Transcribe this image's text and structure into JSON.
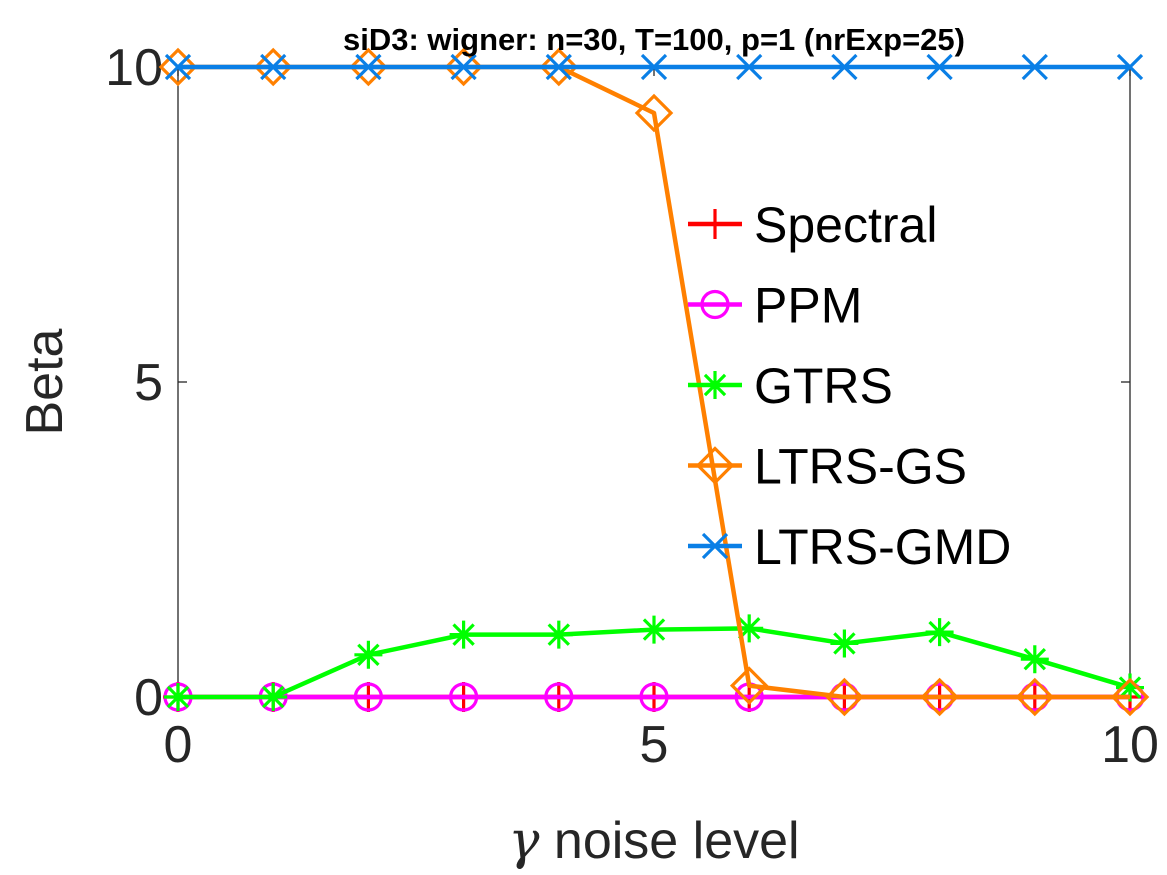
{
  "chart_data": {
    "type": "line",
    "title": "siD3: wigner: n=30, T=100, p=1 (nrExp=25)",
    "xlabel": "γ noise level",
    "xlabel_symbol": "γ",
    "xlabel_text": "noise level",
    "ylabel": "Beta",
    "xlim": [
      0,
      10
    ],
    "ylim": [
      0,
      10
    ],
    "xticks": [
      0,
      5,
      10
    ],
    "yticks": [
      0,
      5,
      10
    ],
    "xtick_labels": [
      "0",
      "5",
      "10"
    ],
    "ytick_labels": [
      "0",
      "5",
      "10"
    ],
    "grid": false,
    "legend_position": "right",
    "x": [
      0,
      1,
      2,
      3,
      4,
      5,
      6,
      7,
      8,
      9,
      10
    ],
    "series": [
      {
        "name": "Spectral",
        "color": "#ff0000",
        "marker": "plus",
        "values": [
          0,
          0,
          0,
          0,
          0,
          0,
          0,
          0,
          0,
          0,
          0
        ]
      },
      {
        "name": "PPM",
        "color": "#ff00ff",
        "marker": "circle",
        "values": [
          0,
          0,
          0,
          0,
          0,
          0,
          0,
          0,
          0,
          0,
          0
        ]
      },
      {
        "name": "GTRS",
        "color": "#00ff00",
        "marker": "asterisk",
        "values": [
          0,
          0,
          0.67,
          0.99,
          0.99,
          1.07,
          1.09,
          0.85,
          1.03,
          0.6,
          0.15
        ]
      },
      {
        "name": "LTRS-GS",
        "color": "#ff8000",
        "marker": "diamond",
        "values": [
          10,
          10,
          10,
          10,
          10,
          9.27,
          0.18,
          0,
          0,
          0,
          0
        ]
      },
      {
        "name": "LTRS-GMD",
        "color": "#0a7fe6",
        "marker": "x",
        "values": [
          10,
          10,
          10,
          10,
          10,
          10,
          10,
          10,
          10,
          10,
          10
        ]
      }
    ]
  }
}
